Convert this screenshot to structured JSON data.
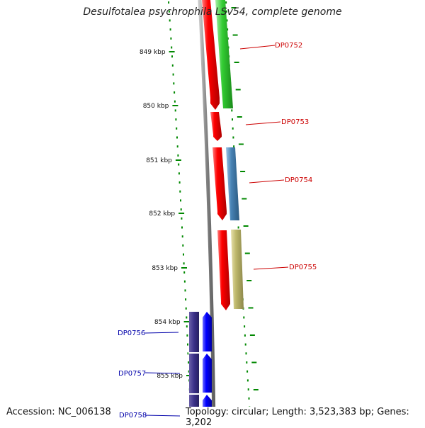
{
  "title": "Desulfotalea psychrophila LSv54, complete genome",
  "footer": {
    "accession": "Accession: NC_006138",
    "summary": "Topology: circular; Length: 3,523,383 bp; Genes: 3,202"
  },
  "scale": {
    "unit": "kbp",
    "ticks": [
      "849 kbp",
      "850 kbp",
      "851 kbp",
      "852 kbp",
      "853 kbp",
      "854 kbp",
      "855 kbp"
    ]
  },
  "genes": [
    {
      "label": "DP0752",
      "strand": "forward",
      "color": "#cc0000"
    },
    {
      "label": "DP0753",
      "strand": "forward",
      "color": "#cc0000"
    },
    {
      "label": "DP0754",
      "strand": "forward",
      "color": "#cc0000"
    },
    {
      "label": "DP0755",
      "strand": "forward",
      "color": "#cc0000"
    },
    {
      "label": "DP0756",
      "strand": "reverse",
      "color": "#0000aa"
    },
    {
      "label": "DP0757",
      "strand": "reverse",
      "color": "#0000aa"
    },
    {
      "label": "DP0758",
      "strand": "reverse",
      "color": "#0000aa"
    }
  ],
  "colors": {
    "forward_gene": "#ff0000",
    "reverse_gene": "#0000ff",
    "backbone": "#808080",
    "ticks": "#008800",
    "forward_label": "#cc0000",
    "reverse_label": "#0000aa"
  }
}
